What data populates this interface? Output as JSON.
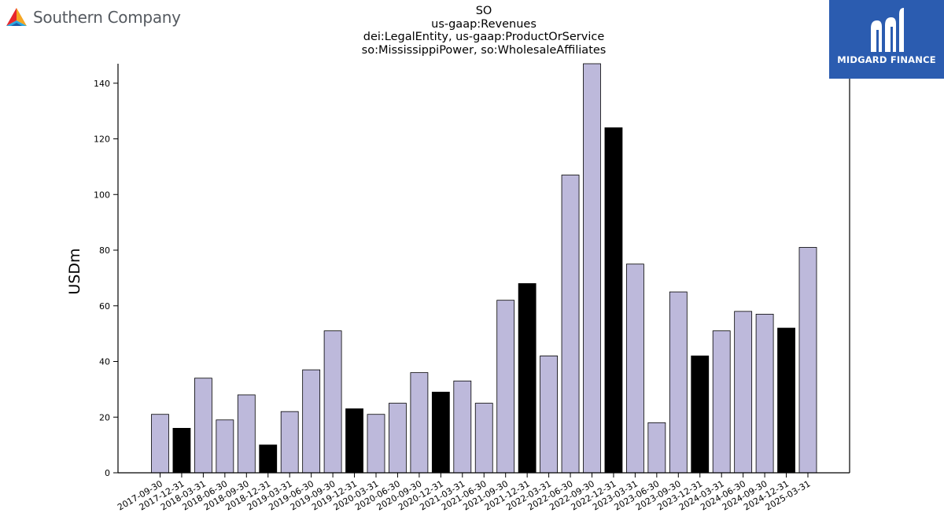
{
  "brand": {
    "name": "Southern Company",
    "logo_icon": "southern-company-triangle-icon",
    "logo_colors": [
      "#e8262b",
      "#f5a623",
      "#2aa8e0",
      "#1e5ba8"
    ]
  },
  "partner": {
    "name": "MIDGARD FINANCE",
    "icon": "midgard-m-icon",
    "background": "#2b5cb0"
  },
  "chart_data": {
    "type": "bar",
    "title": "SO",
    "subtitle_lines": [
      "us-gaap:Revenues",
      "dei:LegalEntity, us-gaap:ProductOrService",
      "so:MississippiPower, so:WholesaleAffiliates"
    ],
    "xlabel": "",
    "ylabel": "USDm",
    "ylim": [
      0,
      147
    ],
    "yticks": [
      0,
      20,
      40,
      60,
      80,
      100,
      120,
      140
    ],
    "grid": false,
    "colors": {
      "quarter": "#bdb9db",
      "year_end": "#000000",
      "edge": "#000000"
    },
    "categories": [
      "2017-09-30",
      "2017-12-31",
      "2018-03-31",
      "2018-06-30",
      "2018-09-30",
      "2018-12-31",
      "2019-03-31",
      "2019-06-30",
      "2019-09-30",
      "2019-12-31",
      "2020-03-31",
      "2020-06-30",
      "2020-09-30",
      "2020-12-31",
      "2021-03-31",
      "2021-06-30",
      "2021-09-30",
      "2021-12-31",
      "2022-03-31",
      "2022-06-30",
      "2022-09-30",
      "2022-12-31",
      "2023-03-31",
      "2023-06-30",
      "2023-09-30",
      "2023-12-31",
      "2024-03-31",
      "2024-06-30",
      "2024-09-30",
      "2024-12-31",
      "2025-03-31"
    ],
    "values": [
      21,
      16,
      34,
      19,
      28,
      10,
      22,
      37,
      51,
      23,
      21,
      25,
      36,
      29,
      33,
      25,
      62,
      68,
      42,
      107,
      147,
      124,
      75,
      18,
      65,
      42,
      51,
      58,
      57,
      52,
      81
    ]
  }
}
